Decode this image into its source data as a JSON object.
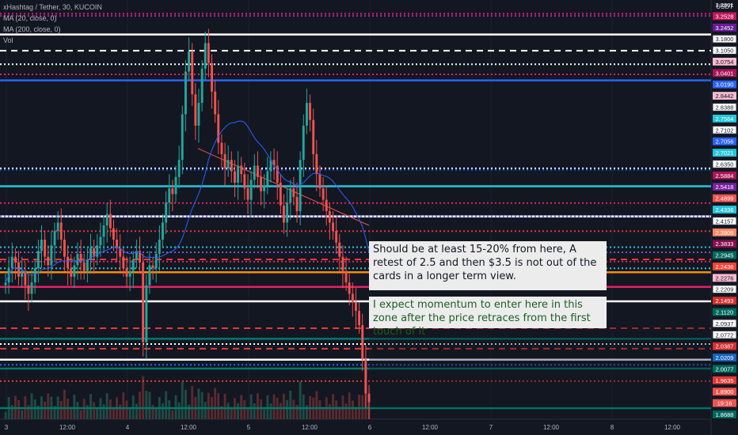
{
  "legend": {
    "symbol": "xHashtag / Tether, 30, KUCOIN",
    "ma20": "MA (20, close, 0)",
    "ma200": "MA (200, close, 0)",
    "vol": "Vol"
  },
  "currency": "USDT",
  "annotations": {
    "note1": "Should be at least 15-20% from here, A retest of 2.5 and then $3.5 is not out of the cards in a longer term view.",
    "note2": "I expect momentum to enter here in this zone after the price retraces from the first touch of it"
  },
  "colors": {
    "background": "#131722",
    "up": "#26a69a",
    "down": "#ef5350"
  },
  "chart_data": {
    "type": "candlestick",
    "title": "xHashtag / Tether, 30, KUCOIN",
    "ylim": [
      1.83,
      3.29
    ],
    "x_ticks": [
      "3",
      "12:00",
      "4",
      "12:00",
      "5",
      "12:00",
      "6",
      "12:00",
      "7",
      "12:00",
      "8",
      "12:00"
    ],
    "price_labels": [
      {
        "value": "3.2601",
        "color": "#131722"
      },
      {
        "value": "3.2528",
        "color": "#c2185b"
      },
      {
        "value": "3.2452",
        "color": "#6a1b9a"
      },
      {
        "value": "3.1800",
        "color": "#ffffff"
      },
      {
        "value": "3.1050",
        "color": "#ffffff"
      },
      {
        "value": "3.0754",
        "color": "#f8bbd0"
      },
      {
        "value": "3.0401",
        "color": "#ad1457"
      },
      {
        "value": "3.0190",
        "color": "#2962ff"
      },
      {
        "value": "2.8442",
        "color": "#f8bbd0"
      },
      {
        "value": "2.8388",
        "color": "#ffffff"
      },
      {
        "value": "2.7564",
        "color": "#26c6da"
      },
      {
        "value": "2.7102",
        "color": "#ffffff"
      },
      {
        "value": "2.7056",
        "color": "#2962ff"
      },
      {
        "value": "2.7021",
        "color": "#26c6da"
      },
      {
        "value": "2.6350",
        "color": "#ffffff"
      },
      {
        "value": "2.5884",
        "color": "#ad1457"
      },
      {
        "value": "2.5418",
        "color": "#7b1fa2"
      },
      {
        "value": "2.4899",
        "color": "#ef5350"
      },
      {
        "value": "2.4336",
        "color": "#26c6da"
      },
      {
        "value": "2.4157",
        "color": "#ffffff"
      },
      {
        "value": "2.3906",
        "color": "#ff8a65"
      },
      {
        "value": "2.3833",
        "color": "#880e4f"
      },
      {
        "value": "2.2945",
        "color": "#00695c"
      },
      {
        "value": "2.2436",
        "color": "#f44336"
      },
      {
        "value": "2.2276",
        "color": "#f8bbd0"
      },
      {
        "value": "2.2209",
        "color": "#ffffff"
      },
      {
        "value": "2.1493",
        "color": "#d32f2f"
      },
      {
        "value": "2.1120",
        "color": "#00695c"
      },
      {
        "value": "2.0937",
        "color": "#ffffff"
      },
      {
        "value": "2.0772",
        "color": "#ffffff"
      },
      {
        "value": "2.0387",
        "color": "#d32f2f"
      },
      {
        "value": "2.0209",
        "color": "#1565c0"
      },
      {
        "value": "2.0077",
        "color": "#00695c"
      },
      {
        "value": "1.9635",
        "color": "#e53935"
      },
      {
        "value": "1.8900",
        "color": "#ef5350"
      },
      {
        "value": "19:16",
        "color": "#ef5350"
      },
      {
        "value": "1.8688",
        "color": "#00695c"
      }
    ],
    "horizontal_levels": [
      {
        "price": 3.2528,
        "color": "#e91e63",
        "style": "dotted"
      },
      {
        "price": 3.2452,
        "color": "#9c27b0",
        "style": "dotted"
      },
      {
        "price": 3.18,
        "color": "#ffffff",
        "style": "solid"
      },
      {
        "price": 3.1232,
        "color": "#ffffff",
        "style": "dashed"
      },
      {
        "price": 3.0754,
        "color": "#ffffff",
        "style": "dotted"
      },
      {
        "price": 3.0401,
        "color": "#e91e63",
        "style": "dotted"
      },
      {
        "price": 3.019,
        "color": "#2962ff",
        "style": "solid"
      },
      {
        "price": 2.7102,
        "color": "#ffffff",
        "style": "dotted"
      },
      {
        "price": 2.7056,
        "color": "#2962ff",
        "style": "dotted"
      },
      {
        "price": 2.6474,
        "color": "#26c6da",
        "style": "solid"
      },
      {
        "price": 2.5884,
        "color": "#e91e63",
        "style": "dotted"
      },
      {
        "price": 2.5418,
        "color": "#ffffff",
        "style": "solid"
      },
      {
        "price": 2.5418,
        "color": "#7b61ff",
        "style": "dotted"
      },
      {
        "price": 2.4899,
        "color": "#e53935",
        "style": "dotted"
      },
      {
        "price": 2.4336,
        "color": "#26c6da",
        "style": "dotted"
      },
      {
        "price": 2.4157,
        "color": "#7e57c2",
        "style": "dotted"
      },
      {
        "price": 2.3906,
        "color": "#e53935",
        "style": "dashed"
      },
      {
        "price": 2.3833,
        "color": "#e91e63",
        "style": "dotted"
      },
      {
        "price": 2.3596,
        "color": "#26c6da",
        "style": "dotted"
      },
      {
        "price": 2.3458,
        "color": "#ff8a00",
        "style": "solid"
      },
      {
        "price": 2.2945,
        "color": "#e91e63",
        "style": "solid"
      },
      {
        "price": 2.2436,
        "color": "#ffffff",
        "style": "solid"
      },
      {
        "price": 2.1493,
        "color": "#e53935",
        "style": "dashed"
      },
      {
        "price": 2.112,
        "color": "#00796b",
        "style": "solid"
      },
      {
        "price": 2.0937,
        "color": "#ffffff",
        "style": "dotted"
      },
      {
        "price": 2.0772,
        "color": "#e53935",
        "style": "dashed"
      },
      {
        "price": 2.0387,
        "color": "#ffffff",
        "style": "solid"
      },
      {
        "price": 2.0209,
        "color": "#2962ff",
        "style": "dotted"
      },
      {
        "price": 2.0077,
        "color": "#00796b",
        "style": "solid"
      },
      {
        "price": 1.9635,
        "color": "#e53935",
        "style": "dotted"
      },
      {
        "price": 1.8688,
        "color": "#00796b",
        "style": "solid"
      }
    ],
    "candles_close": [
      2.31,
      2.36,
      2.4,
      2.38,
      2.33,
      2.35,
      2.3,
      2.27,
      2.31,
      2.36,
      2.42,
      2.46,
      2.4,
      2.37,
      2.44,
      2.49,
      2.52,
      2.46,
      2.4,
      2.36,
      2.33,
      2.37,
      2.41,
      2.38,
      2.35,
      2.39,
      2.43,
      2.4,
      2.44,
      2.47,
      2.51,
      2.55,
      2.5,
      2.46,
      2.43,
      2.4,
      2.36,
      2.33,
      2.35,
      2.39,
      2.42,
      2.38,
      2.1,
      2.3,
      2.37,
      2.36,
      2.41,
      2.46,
      2.52,
      2.59,
      2.64,
      2.62,
      2.68,
      2.74,
      2.9,
      3.05,
      3.12,
      2.97,
      2.86,
      2.94,
      3.06,
      3.15,
      3.08,
      2.98,
      2.9,
      2.8,
      2.76,
      2.71,
      2.74,
      2.7,
      2.66,
      2.72,
      2.69,
      2.64,
      2.6,
      2.67,
      2.72,
      2.68,
      2.63,
      2.65,
      2.7,
      2.74,
      2.72,
      2.66,
      2.58,
      2.52,
      2.59,
      2.64,
      2.61,
      2.56,
      2.74,
      2.86,
      2.94,
      2.88,
      2.76,
      2.69,
      2.64,
      2.6,
      2.56,
      2.52,
      2.49,
      2.45,
      2.4,
      2.35,
      2.31,
      2.27,
      2.24,
      2.21,
      2.16,
      2.04,
      1.92,
      1.89
    ]
  }
}
